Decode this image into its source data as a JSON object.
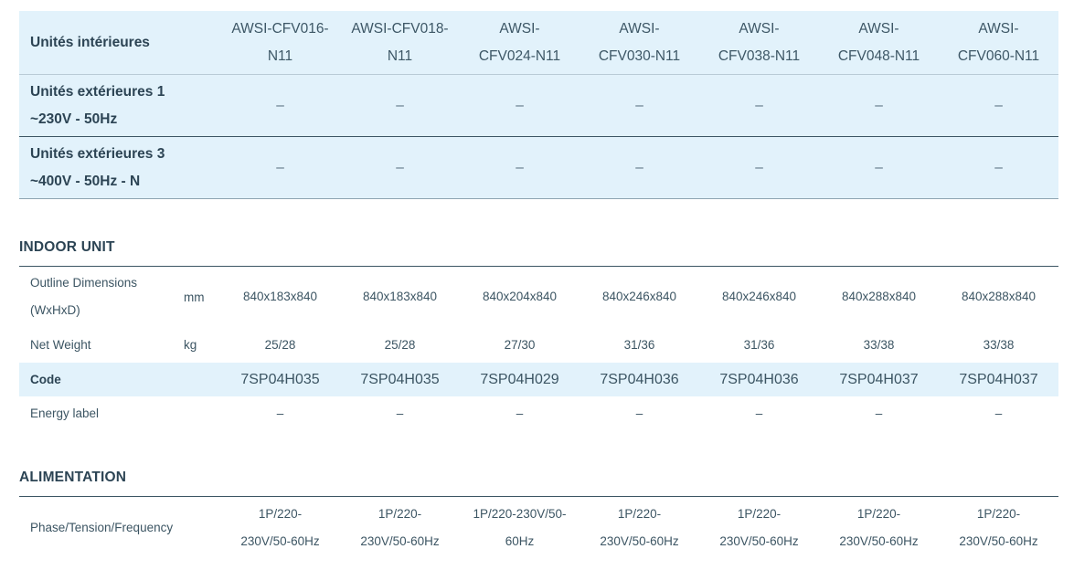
{
  "header": {
    "row_label": "Unités intérieures",
    "models": [
      "AWSI-CFV016-N11",
      "AWSI-CFV018-N11",
      "AWSI-CFV024-N11",
      "AWSI-CFV030-N11",
      "AWSI-CFV038-N11",
      "AWSI-CFV048-N11",
      "AWSI-CFV060-N11"
    ],
    "model_lines": [
      [
        "AWSI-CFV016-",
        "N11"
      ],
      [
        "AWSI-CFV018-",
        "N11"
      ],
      [
        "AWSI-",
        "CFV024-N11"
      ],
      [
        "AWSI-",
        "CFV030-N11"
      ],
      [
        "AWSI-",
        "CFV038-N11"
      ],
      [
        "AWSI-",
        "CFV048-N11"
      ],
      [
        "AWSI-",
        "CFV060-N11"
      ]
    ],
    "outdoor_rows": [
      {
        "label_line1": "Unités extérieures 1",
        "label_line2": "~230V - 50Hz",
        "values": [
          "–",
          "–",
          "–",
          "–",
          "–",
          "–",
          "–"
        ]
      },
      {
        "label_line1": "Unités extérieures 3",
        "label_line2": "~400V - 50Hz - N",
        "values": [
          "–",
          "–",
          "–",
          "–",
          "–",
          "–",
          "–"
        ]
      }
    ]
  },
  "indoor_unit": {
    "title": "INDOOR UNIT",
    "rows": [
      {
        "label_line1": "Outline Dimensions",
        "label_line2": "(WxHxD)",
        "unit": "mm",
        "values": [
          "840x183x840",
          "840x183x840",
          "840x204x840",
          "840x246x840",
          "840x246x840",
          "840x288x840",
          "840x288x840"
        ]
      },
      {
        "label_line1": "Net Weight",
        "label_line2": "",
        "unit": "kg",
        "values": [
          "25/28",
          "25/28",
          "27/30",
          "31/36",
          "31/36",
          "33/38",
          "33/38"
        ]
      },
      {
        "label_line1": "Code",
        "label_line2": "",
        "unit": "",
        "values": [
          "7SP04H035",
          "7SP04H035",
          "7SP04H029",
          "7SP04H036",
          "7SP04H036",
          "7SP04H037",
          "7SP04H037"
        ]
      },
      {
        "label_line1": "Energy label",
        "label_line2": "",
        "unit": "",
        "values": [
          "–",
          "–",
          "–",
          "–",
          "–",
          "–",
          "–"
        ]
      }
    ]
  },
  "alimentation": {
    "title": "ALIMENTATION",
    "rows": [
      {
        "label": "Phase/Tension/Frequency",
        "unit": "",
        "value_lines": [
          [
            "1P/220-",
            "230V/50-60Hz"
          ],
          [
            "1P/220-",
            "230V/50-60Hz"
          ],
          [
            "1P/220-230V/50-",
            "60Hz"
          ],
          [
            "1P/220-",
            "230V/50-60Hz"
          ],
          [
            "1P/220-",
            "230V/50-60Hz"
          ],
          [
            "1P/220-",
            "230V/50-60Hz"
          ],
          [
            "1P/220-",
            "230V/50-60Hz"
          ]
        ]
      }
    ]
  },
  "colors": {
    "header_bg": "#e2f2fb",
    "text": "#2f4a5a",
    "rule": "#3c5563"
  }
}
